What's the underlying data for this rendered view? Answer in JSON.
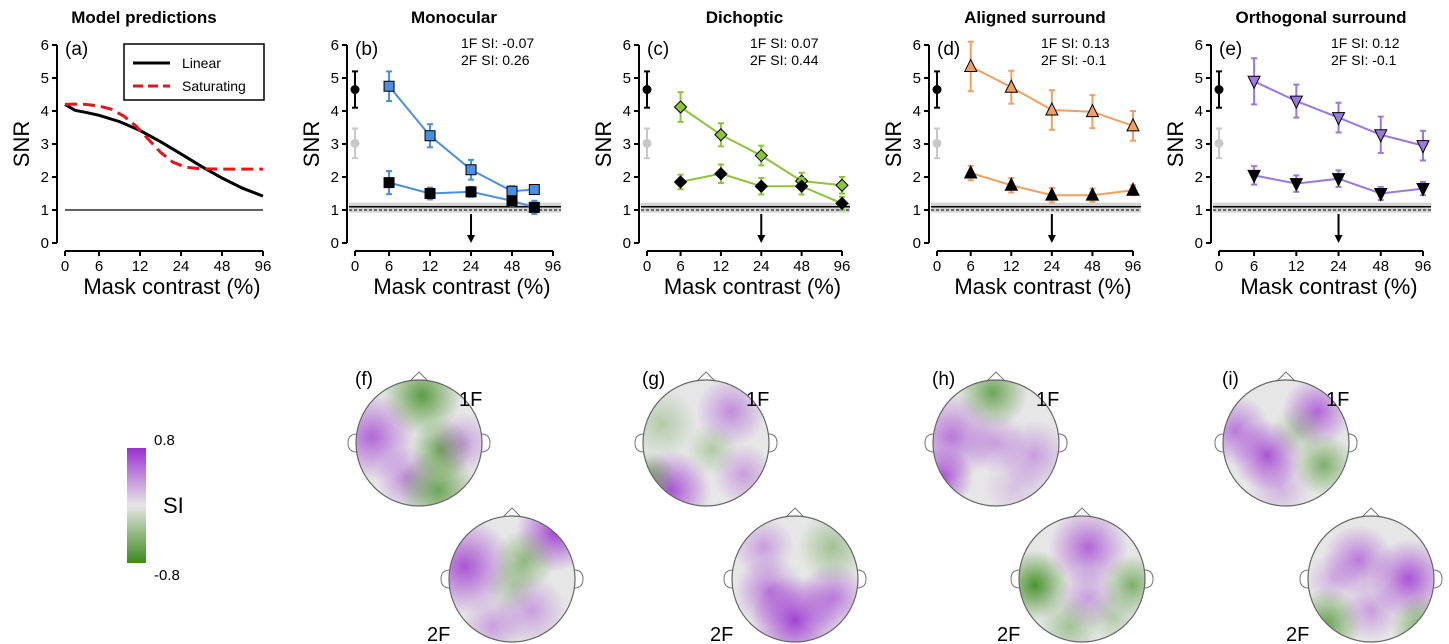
{
  "chart_data": [
    {
      "id": "a",
      "type": "line",
      "title": "Model predictions",
      "panel_letter": "(a)",
      "xlabel": "Mask contrast (%)",
      "ylabel": "SNR",
      "ylim": [
        0,
        6
      ],
      "x_ticks": [
        "0",
        "6",
        "12",
        "24",
        "48",
        "96"
      ],
      "y_ticks": [
        "0",
        "1",
        "2",
        "3",
        "4",
        "5",
        "6"
      ],
      "legend": {
        "placement": "top-right",
        "entries": [
          "Linear",
          "Saturating"
        ]
      },
      "reference_line": 1,
      "series": [
        {
          "name": "Linear",
          "color": "#000000",
          "style": "solid",
          "x": [
            0,
            0.3,
            0.6,
            1.0,
            1.5,
            2.0,
            2.5,
            3.0,
            3.5,
            4.0,
            4.5,
            5.0
          ],
          "y": [
            4.2,
            4.02,
            3.96,
            3.87,
            3.68,
            3.41,
            3.07,
            2.7,
            2.32,
            1.97,
            1.66,
            1.42
          ]
        },
        {
          "name": "Saturating",
          "color": "#e8141c",
          "style": "dashed",
          "x": [
            0,
            0.3,
            0.6,
            1.0,
            1.3,
            1.6,
            1.9,
            2.2,
            2.5,
            2.8,
            3.1,
            3.5,
            4.0,
            4.5,
            5.0
          ],
          "y": [
            4.2,
            4.21,
            4.2,
            4.15,
            4.05,
            3.85,
            3.55,
            3.15,
            2.75,
            2.45,
            2.3,
            2.25,
            2.24,
            2.24,
            2.24
          ]
        }
      ]
    },
    {
      "id": "b",
      "type": "line",
      "title": "Monocular",
      "panel_letter": "(b)",
      "si_1f": "1F SI: -0.07",
      "si_2f": "2F SI: 0.26",
      "xlabel": "Mask contrast (%)",
      "ylabel": "SNR",
      "ylim": [
        0,
        6
      ],
      "x_ticks": [
        "0",
        "6",
        "12",
        "24",
        "48",
        "96"
      ],
      "y_ticks": [
        "0",
        "1",
        "2",
        "3",
        "4",
        "5",
        "6"
      ],
      "marker": "square",
      "color": "#4a8ee0",
      "noise_floor": 1.1,
      "arrow_at": "24",
      "baseline": [
        {
          "level": "1F",
          "y": 4.65,
          "err": 0.55
        },
        {
          "level": "2F",
          "y": 3.02,
          "err": 0.45
        }
      ],
      "series": [
        {
          "name": "1F",
          "x": [
            6,
            12,
            24,
            48,
            70
          ],
          "y": [
            4.75,
            3.25,
            2.22,
            1.57,
            1.62
          ],
          "err": [
            0.45,
            0.35,
            0.3,
            0.15,
            0.12
          ]
        },
        {
          "name": "2F",
          "x": [
            6,
            12,
            24,
            48,
            70
          ],
          "y": [
            1.83,
            1.5,
            1.55,
            1.28,
            1.08
          ],
          "err": [
            0.35,
            0.18,
            0.15,
            0.15,
            0.2
          ]
        }
      ]
    },
    {
      "id": "c",
      "type": "line",
      "title": "Dichoptic",
      "panel_letter": "(c)",
      "si_1f": "1F SI: 0.07",
      "si_2f": "2F SI: 0.44",
      "xlabel": "Mask contrast (%)",
      "ylabel": "SNR",
      "ylim": [
        0,
        6
      ],
      "x_ticks": [
        "0",
        "6",
        "12",
        "24",
        "48",
        "96"
      ],
      "y_ticks": [
        "0",
        "1",
        "2",
        "3",
        "4",
        "5",
        "6"
      ],
      "marker": "diamond",
      "color": "#8cc43a",
      "noise_floor": 1.1,
      "arrow_at": "24",
      "baseline": [
        {
          "level": "1F",
          "y": 4.65,
          "err": 0.55
        },
        {
          "level": "2F",
          "y": 3.02,
          "err": 0.45
        }
      ],
      "series": [
        {
          "name": "1F",
          "x": [
            6,
            12,
            24,
            48,
            96
          ],
          "y": [
            4.12,
            3.28,
            2.65,
            1.88,
            1.75
          ],
          "err": [
            0.45,
            0.35,
            0.3,
            0.25,
            0.25
          ]
        },
        {
          "name": "2F",
          "x": [
            6,
            12,
            24,
            48,
            96
          ],
          "y": [
            1.85,
            2.1,
            1.72,
            1.72,
            1.2
          ],
          "err": [
            0.22,
            0.28,
            0.25,
            0.25,
            0.2
          ]
        }
      ]
    },
    {
      "id": "d",
      "type": "line",
      "title": "Aligned surround",
      "panel_letter": "(d)",
      "si_1f": "1F SI: 0.13",
      "si_2f": "2F SI: -0.1",
      "xlabel": "Mask contrast (%)",
      "ylabel": "SNR",
      "ylim": [
        0,
        6
      ],
      "x_ticks": [
        "0",
        "6",
        "12",
        "24",
        "48",
        "96"
      ],
      "y_ticks": [
        "0",
        "1",
        "2",
        "3",
        "4",
        "5",
        "6"
      ],
      "marker": "triangle-up",
      "color": "#f0a060",
      "noise_floor": 1.1,
      "arrow_at": "24",
      "baseline": [
        {
          "level": "1F",
          "y": 4.65,
          "err": 0.55
        },
        {
          "level": "2F",
          "y": 3.02,
          "err": 0.45
        }
      ],
      "series": [
        {
          "name": "1F",
          "x": [
            6,
            12,
            24,
            48,
            96
          ],
          "y": [
            5.35,
            4.72,
            4.03,
            3.98,
            3.55
          ],
          "err": [
            0.75,
            0.5,
            0.6,
            0.5,
            0.45
          ]
        },
        {
          "name": "2F",
          "x": [
            6,
            12,
            24,
            48,
            96
          ],
          "y": [
            2.12,
            1.75,
            1.45,
            1.45,
            1.6
          ],
          "err": [
            0.22,
            0.22,
            0.22,
            0.2,
            0.15
          ]
        }
      ]
    },
    {
      "id": "e",
      "type": "line",
      "title": "Orthogonal surround",
      "panel_letter": "(e)",
      "si_1f": "1F SI: 0.12",
      "si_2f": "2F SI: -0.1",
      "xlabel": "Mask contrast (%)",
      "ylabel": "SNR",
      "ylim": [
        0,
        6
      ],
      "x_ticks": [
        "0",
        "6",
        "12",
        "24",
        "48",
        "96"
      ],
      "y_ticks": [
        "0",
        "1",
        "2",
        "3",
        "4",
        "5",
        "6"
      ],
      "marker": "triangle-down",
      "color": "#9a78e0",
      "noise_floor": 1.1,
      "arrow_at": "24",
      "baseline": [
        {
          "level": "1F",
          "y": 4.65,
          "err": 0.55
        },
        {
          "level": "2F",
          "y": 3.02,
          "err": 0.45
        }
      ],
      "series": [
        {
          "name": "1F",
          "x": [
            6,
            12,
            24,
            48,
            96
          ],
          "y": [
            4.9,
            4.3,
            3.8,
            3.28,
            2.95
          ],
          "err": [
            0.7,
            0.5,
            0.45,
            0.55,
            0.45
          ]
        },
        {
          "name": "2F",
          "x": [
            6,
            12,
            24,
            48,
            96
          ],
          "y": [
            2.05,
            1.8,
            1.95,
            1.5,
            1.65
          ],
          "err": [
            0.28,
            0.25,
            0.25,
            0.2,
            0.2
          ]
        }
      ]
    },
    {
      "id": "maps",
      "type": "heatmap",
      "colorbar": {
        "label": "SI",
        "max_label": "0.8",
        "min_label": "-0.8",
        "max": 0.8,
        "min": -0.8,
        "colors": [
          "#9b30d0",
          "#e6e6e6",
          "#3a8a1a"
        ]
      },
      "panels": [
        {
          "letter": "(f)",
          "top_label": "1F",
          "bottom_label": "2F"
        },
        {
          "letter": "(g)",
          "top_label": "1F",
          "bottom_label": "2F"
        },
        {
          "letter": "(h)",
          "top_label": "1F",
          "bottom_label": "2F"
        },
        {
          "letter": "(i)",
          "top_label": "1F",
          "bottom_label": "2F"
        }
      ]
    }
  ],
  "colors": {
    "baseline_1f": "#000000",
    "baseline_2f": "#c8c8c8",
    "noise_band": "#d4d4d4",
    "map_purple": "#9b30d0",
    "map_green": "#3a8a1a",
    "map_neutral": "#e6e6e6"
  }
}
